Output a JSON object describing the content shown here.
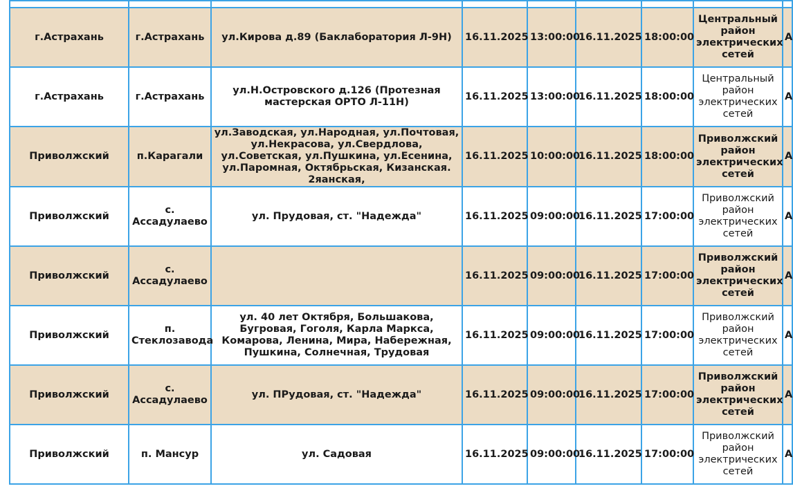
{
  "rows": [
    {
      "district": "",
      "locality": "",
      "address": "",
      "date_start": "",
      "time_start": "",
      "date_end": "",
      "time_end": "",
      "org": "",
      "extra": "",
      "beige": false
    },
    {
      "district": "г.Астрахань",
      "locality": "г.Астрахань",
      "address": "ул.Кирова д.89 (Баклаборатория Л-9Н)",
      "date_start": "16.11.2025",
      "time_start": "13:00:00",
      "date_end": "16.11.2025",
      "time_end": "18:00:00",
      "org": "Центральный район электрических сетей",
      "extra": "А",
      "beige": true
    },
    {
      "district": "г.Астрахань",
      "locality": "г.Астрахань",
      "address": "ул.Н.Островского д.126 (Протезная мастерская ОРТО Л-11Н)",
      "date_start": "16.11.2025",
      "time_start": "13:00:00",
      "date_end": "16.11.2025",
      "time_end": "18:00:00",
      "org": "Центральный район электрических сетей",
      "extra": "А",
      "beige": false
    },
    {
      "district": "Приволжский",
      "locality": "п.Карагали",
      "address": "ул.Заводская, ул.Народная, ул.Почтовая, ул.Некрасова, ул.Свердлова, ул.Советская, ул.Пушкина, ул.Есенина, ул.Паромная, Октябрьская, Кизанская. 2яанская,",
      "date_start": "16.11.2025",
      "time_start": "10:00:00",
      "date_end": "16.11.2025",
      "time_end": "18:00:00",
      "org": "Приволжский район электрических сетей",
      "extra": "А",
      "beige": true
    },
    {
      "district": "Приволжский",
      "locality": "с. Ассадулаево",
      "address": "ул. Прудовая, ст. \"Надежда\"",
      "date_start": "16.11.2025",
      "time_start": "09:00:00",
      "date_end": "16.11.2025",
      "time_end": "17:00:00",
      "org": "Приволжский район электрических сетей",
      "extra": "А",
      "beige": false
    },
    {
      "district": "Приволжский",
      "locality": "с. Ассадулаево",
      "address": "",
      "date_start": "16.11.2025",
      "time_start": "09:00:00",
      "date_end": "16.11.2025",
      "time_end": "17:00:00",
      "org": "Приволжский район электрических сетей",
      "extra": "А",
      "beige": true
    },
    {
      "district": "Приволжский",
      "locality": "п. Стеклозавода",
      "address": "ул. 40 лет Октября, Большакова, Бугровая, Гоголя, Карла Маркса, Комарова, Ленина, Мира, Набережная, Пушкина, Солнечная, Трудовая",
      "date_start": "16.11.2025",
      "time_start": "09:00:00",
      "date_end": "16.11.2025",
      "time_end": "17:00:00",
      "org": "Приволжский район электрических сетей",
      "extra": "А",
      "beige": false
    },
    {
      "district": "Приволжский",
      "locality": "с. Ассадулаево",
      "address": "ул. ПРудовая, ст. \"Надежда\"",
      "date_start": "16.11.2025",
      "time_start": "09:00:00",
      "date_end": "16.11.2025",
      "time_end": "17:00:00",
      "org": "Приволжский район электрических сетей",
      "extra": "А",
      "beige": true
    },
    {
      "district": "Приволжский",
      "locality": "п. Мансур",
      "address": "ул. Садовая",
      "date_start": "16.11.2025",
      "time_start": "09:00:00",
      "date_end": "16.11.2025",
      "time_end": "17:00:00",
      "org": "Приволжский район электрических сетей",
      "extra": "А",
      "beige": false
    }
  ],
  "colors": {
    "border": "#3ba3e6",
    "beige_row": "#ecdcc4"
  }
}
